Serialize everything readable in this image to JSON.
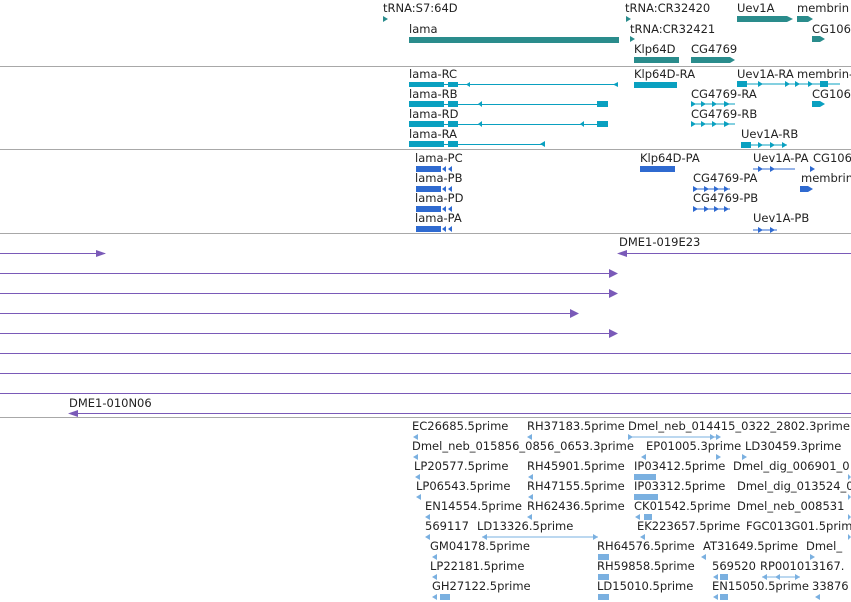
{
  "colors": {
    "gene": "#2a8c8c",
    "transcript": "#0aa0c0",
    "protein": "#2f6ad0",
    "clone": "#7a5ab8",
    "est": "#7ab0e0",
    "separator": "#a8a8a8"
  },
  "tracks": {
    "genes": [
      {
        "label": "tRNA:S7:64D"
      },
      {
        "label": "lama"
      },
      {
        "label": "tRNA:CR32420"
      },
      {
        "label": "tRNA:CR32421"
      },
      {
        "label": "Klp64D"
      },
      {
        "label": "CG4769"
      },
      {
        "label": "Uev1A"
      },
      {
        "label": "membrin"
      },
      {
        "label": "CG106"
      }
    ],
    "transcripts": [
      {
        "label": "lama-RC"
      },
      {
        "label": "lama-RB"
      },
      {
        "label": "lama-RD"
      },
      {
        "label": "lama-RA"
      },
      {
        "label": "Klp64D-RA"
      },
      {
        "label": "CG4769-RA"
      },
      {
        "label": "CG4769-RB"
      },
      {
        "label": "Uev1A-RA"
      },
      {
        "label": "membrin-"
      },
      {
        "label": "CG106"
      },
      {
        "label": "Uev1A-RB"
      }
    ],
    "proteins": [
      {
        "label": "lama-PC"
      },
      {
        "label": "lama-PB"
      },
      {
        "label": "lama-PD"
      },
      {
        "label": "lama-PA"
      },
      {
        "label": "Klp64D-PA"
      },
      {
        "label": "CG4769-PA"
      },
      {
        "label": "CG4769-PB"
      },
      {
        "label": "Uev1A-PA"
      },
      {
        "label": "CG106"
      },
      {
        "label": "membrin"
      },
      {
        "label": "Uev1A-PB"
      }
    ],
    "clones": [
      {
        "label": "DME1-019E23"
      },
      {
        "label": "DME1-010N06"
      }
    ],
    "ests": [
      {
        "label": "EC26685.5prime"
      },
      {
        "label": "RH37183.5prime"
      },
      {
        "label": "Dmel_neb_014415_0322_2802.3prime"
      },
      {
        "label": "Dmel_neb_015856_0856_0653.3prime"
      },
      {
        "label": "EP01005.3prime"
      },
      {
        "label": "LD30459.3prime"
      },
      {
        "label": "LP20577.5prime"
      },
      {
        "label": "RH45901.5prime"
      },
      {
        "label": "IP03412.5prime"
      },
      {
        "label": "Dmel_dig_006901_0"
      },
      {
        "label": "LP06543.5prime"
      },
      {
        "label": "RH47155.5prime"
      },
      {
        "label": "IP03312.5prime"
      },
      {
        "label": "Dmel_dig_013524_0"
      },
      {
        "label": "EN14554.5prime"
      },
      {
        "label": "RH62436.5prime"
      },
      {
        "label": "CK01542.5prime"
      },
      {
        "label": "Dmel_neb_008531"
      },
      {
        "label": "569117"
      },
      {
        "label": "LD13326.5prime"
      },
      {
        "label": "EK223657.5prime"
      },
      {
        "label": "FGC013G01.5prim"
      },
      {
        "label": "GM04178.5prime"
      },
      {
        "label": "RH64576.5prime"
      },
      {
        "label": "AT31649.5prime"
      },
      {
        "label": "Dmel_"
      },
      {
        "label": "LP22181.5prime"
      },
      {
        "label": "RH59858.5prime"
      },
      {
        "label": "569520"
      },
      {
        "label": "RP001013167."
      },
      {
        "label": "GH27122.5prime"
      },
      {
        "label": "LD15010.5prime"
      },
      {
        "label": "EN15050.5prime"
      },
      {
        "label": "33876"
      }
    ]
  }
}
